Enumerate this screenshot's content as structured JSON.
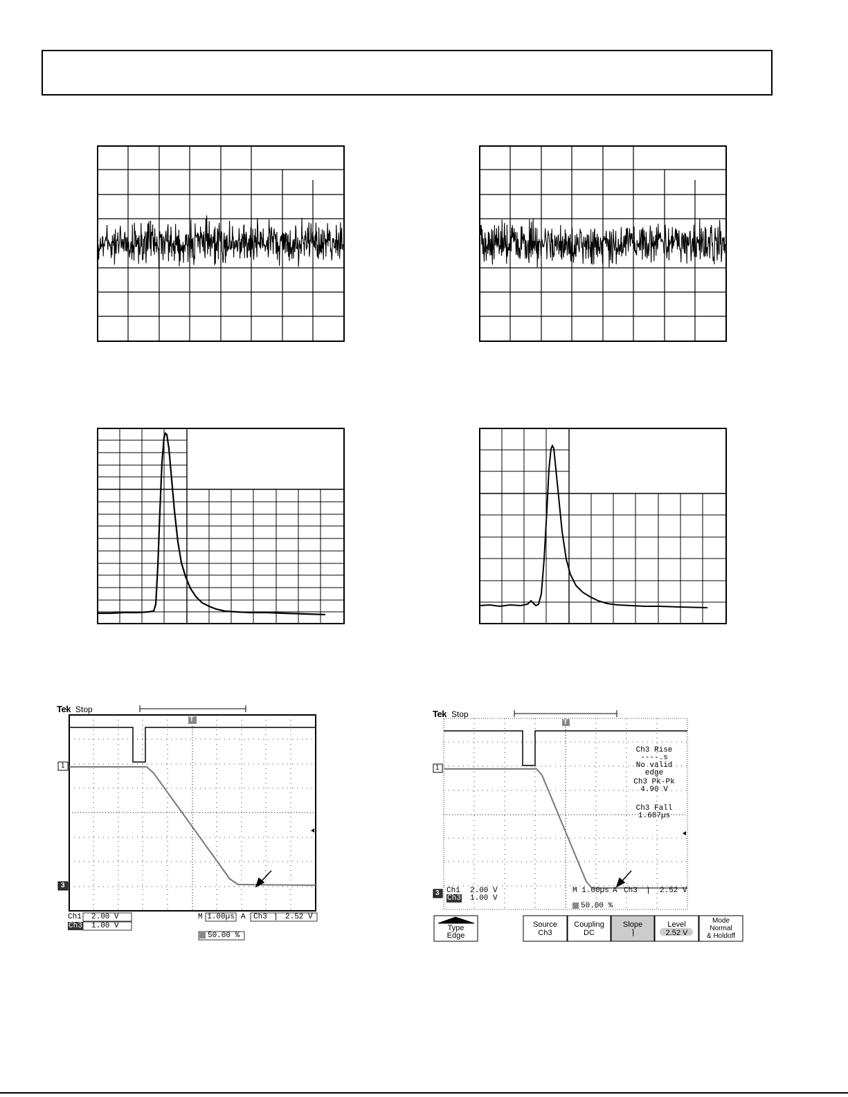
{
  "header": {
    "title": ""
  },
  "scopes": [
    {
      "brand": "Tek",
      "status": "Stop",
      "trigger_marker": "T",
      "ch1_marker": "1",
      "ch3_marker": "3",
      "ch1_label": "Ch1",
      "ch1_scale": "2.00 V",
      "ch3_label": "Ch3",
      "ch3_scale": "1.00 V",
      "timebase": "M 1.00µs",
      "trigger_mode": "A",
      "trigger_source": "Ch3",
      "trigger_slope_symbol": "⌉",
      "trigger_level": "2.52 V",
      "trigger_pos": "50.00 %"
    },
    {
      "brand": "Tek",
      "status": "Stop",
      "trigger_marker": "T",
      "ch1_marker": "1",
      "ch3_marker": "3",
      "ch1_label": "Ch1",
      "ch1_scale": "2.00 V",
      "ch3_label": "Ch3",
      "ch3_scale": "1.00 V",
      "timebase": "M 1.00µs",
      "trigger_mode": "A",
      "trigger_source": "Ch3",
      "trigger_slope_symbol": "⌉",
      "trigger_level": "2.52 V",
      "trigger_pos": "50.00 %",
      "measurements": [
        "Ch3 Rise",
        "----.s",
        "No valid",
        "edge",
        "Ch3 Pk-Pk",
        "4.90 V",
        "Ch3 Fall",
        "1.687µs"
      ],
      "menu": [
        {
          "line1": "Type",
          "line2": "Edge"
        },
        {
          "line1": "Source",
          "line2": "Ch3"
        },
        {
          "line1": "Coupling",
          "line2": "DC"
        },
        {
          "line1": "Slope",
          "line2": "⌉"
        },
        {
          "line1": "Level",
          "line2": "2.52 V"
        },
        {
          "line1": "Mode",
          "line2": "Normal",
          "line3": "& Holdoff"
        }
      ]
    }
  ]
}
